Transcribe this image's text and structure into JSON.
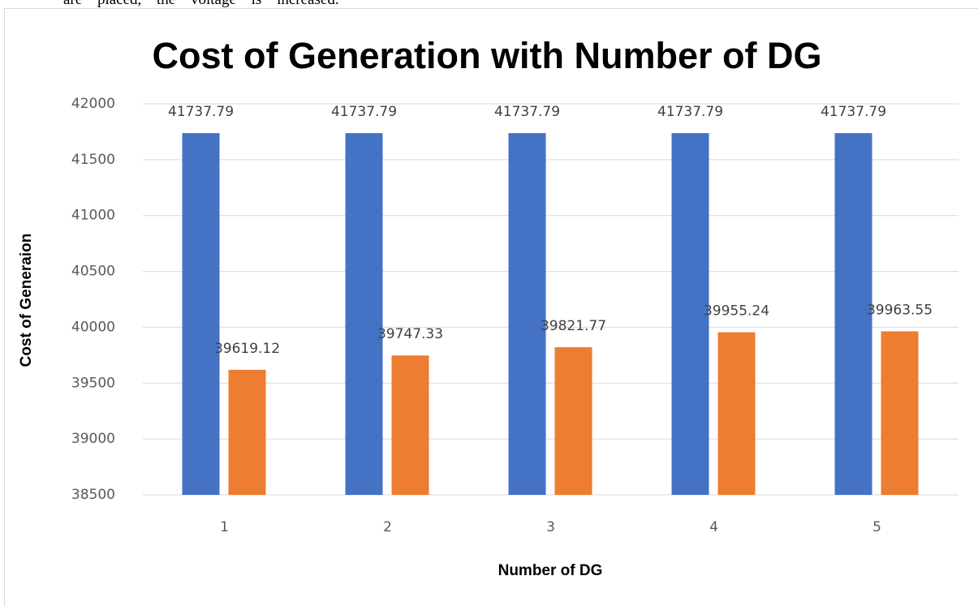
{
  "page_text": "are placed, the voltage is increased.",
  "chart_data": {
    "type": "bar",
    "title": "Cost of Generation with Number of DG",
    "x_label": "Number of DG",
    "y_label": "Cost of Generaion",
    "categories": [
      "1",
      "2",
      "3",
      "4",
      "5"
    ],
    "series": [
      {
        "color": "#4472c4",
        "values": [
          41737.79,
          41737.79,
          41737.79,
          41737.79,
          41737.79
        ]
      },
      {
        "color": "#ed7d31",
        "values": [
          39619.12,
          39747.33,
          39821.77,
          39955.24,
          39963.55
        ]
      }
    ],
    "ylim": [
      38500,
      42000
    ],
    "yticks": [
      38500,
      39000,
      39500,
      40000,
      40500,
      41000,
      41500,
      42000
    ],
    "grid": true
  }
}
